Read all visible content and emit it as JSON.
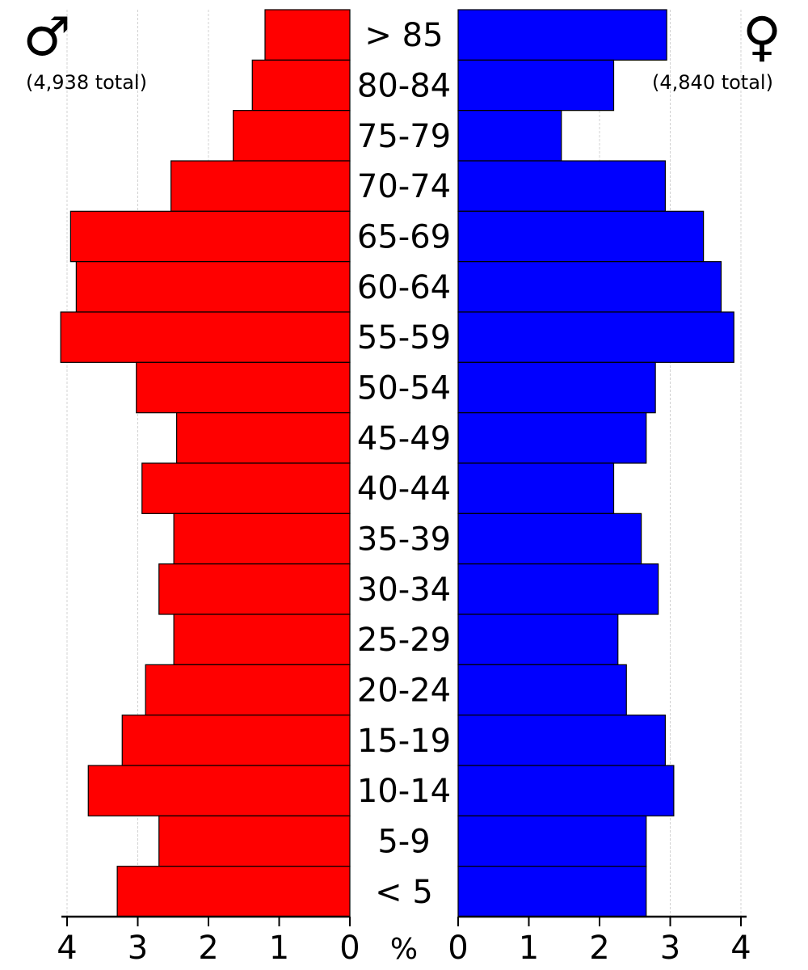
{
  "chart_data": {
    "type": "bar",
    "categories": [
      "> 85",
      "80-84",
      "75-79",
      "70-74",
      "65-69",
      "60-64",
      "55-59",
      "50-54",
      "45-49",
      "40-44",
      "35-39",
      "30-34",
      "25-29",
      "20-24",
      "15-19",
      "10-14",
      "5-9",
      "< 5"
    ],
    "series": [
      {
        "symbol": "♂",
        "total_label": "(4,938 total)",
        "color": "#ff0000",
        "side": "left",
        "values": [
          1.2,
          1.38,
          1.65,
          2.53,
          3.95,
          3.87,
          4.09,
          3.02,
          2.45,
          2.94,
          2.49,
          2.7,
          2.49,
          2.89,
          3.22,
          3.7,
          2.7,
          3.29
        ]
      },
      {
        "symbol": "♀",
        "total_label": "(4,840 total)",
        "color": "#0000ff",
        "side": "right",
        "values": [
          2.95,
          2.2,
          1.46,
          2.93,
          3.47,
          3.72,
          3.9,
          2.79,
          2.66,
          2.2,
          2.59,
          2.83,
          2.26,
          2.38,
          2.93,
          3.05,
          2.66,
          2.66
        ]
      }
    ],
    "xlim": [
      0,
      4
    ],
    "xticks": [
      0,
      1,
      2,
      3,
      4
    ],
    "axis_unit_label": "%",
    "grid": true
  }
}
